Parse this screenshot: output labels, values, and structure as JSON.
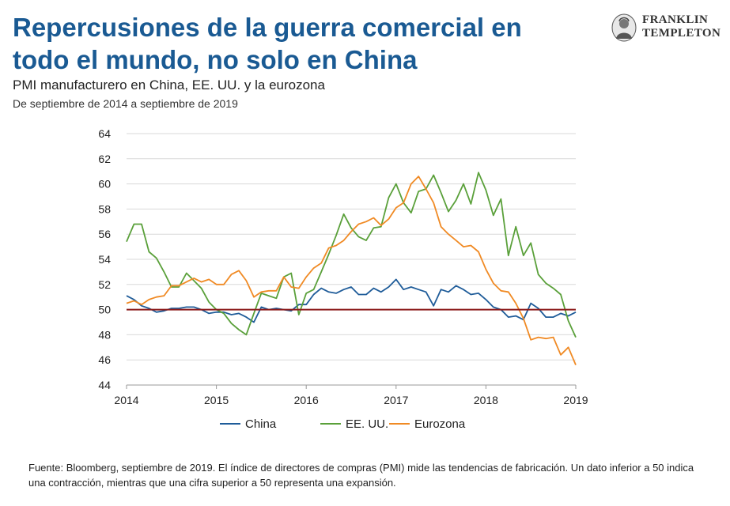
{
  "header": {
    "title": "Repercusiones de la guerra comercial en todo el mundo, no solo en China",
    "subtitle": "PMI manufacturero en China, EE. UU. y la eurozona",
    "date_range": "De septiembre de 2014 a septiembre de 2019"
  },
  "logo": {
    "line1": "FRANKLIN",
    "line2": "TEMPLETON"
  },
  "footnote": "Fuente: Bloomberg, septiembre de 2019. El índice de directores de compras (PMI) mide las tendencias de fabricación. Un dato inferior a 50 indica una contracción, mientras que una cifra superior a 50 representa una expansión.",
  "colors": {
    "china": "#1f5c99",
    "us": "#5aa03a",
    "euro": "#f08a24",
    "threshold": "#8b1a1a",
    "grid": "#d9d9d9"
  },
  "chart_data": {
    "type": "line",
    "ylim": [
      44,
      64
    ],
    "yticks": [
      44,
      46,
      48,
      50,
      52,
      54,
      56,
      58,
      60,
      62,
      64
    ],
    "xlim": [
      2014,
      2019
    ],
    "xticks": [
      2014,
      2015,
      2016,
      2017,
      2018,
      2019
    ],
    "reference_line": 50,
    "legend_position": "bottom",
    "grid": true,
    "series": [
      {
        "name": "China",
        "color": "#1f5c99",
        "x": [
          2014.0,
          2014.083,
          2014.167,
          2014.25,
          2014.333,
          2014.417,
          2014.5,
          2014.583,
          2014.667,
          2014.75,
          2014.833,
          2014.917,
          2015.0,
          2015.083,
          2015.167,
          2015.25,
          2015.333,
          2015.417,
          2015.5,
          2015.583,
          2015.667,
          2015.75,
          2015.833,
          2015.917,
          2016.0,
          2016.083,
          2016.167,
          2016.25,
          2016.333,
          2016.417,
          2016.5,
          2016.583,
          2016.667,
          2016.75,
          2016.833,
          2016.917,
          2017.0,
          2017.083,
          2017.167,
          2017.25,
          2017.333,
          2017.417,
          2017.5,
          2017.583,
          2017.667,
          2017.75,
          2017.833,
          2017.917,
          2018.0,
          2018.083,
          2018.167,
          2018.25,
          2018.333,
          2018.417,
          2018.5,
          2018.583,
          2018.667,
          2018.75,
          2018.833,
          2018.917,
          2019.0
        ],
        "values": [
          51.1,
          50.8,
          50.3,
          50.1,
          49.8,
          49.9,
          50.1,
          50.1,
          50.2,
          50.2,
          50.0,
          49.7,
          49.8,
          49.8,
          49.6,
          49.7,
          49.4,
          49.0,
          50.2,
          50.0,
          50.1,
          50.0,
          49.9,
          50.4,
          50.4,
          51.2,
          51.7,
          51.4,
          51.3,
          51.6,
          51.8,
          51.2,
          51.2,
          51.7,
          51.4,
          51.8,
          52.4,
          51.6,
          51.8,
          51.6,
          51.4,
          50.3,
          51.6,
          51.4,
          51.9,
          51.6,
          51.2,
          51.3,
          50.8,
          50.2,
          50.0,
          49.4,
          49.5,
          49.2,
          50.5,
          50.1,
          49.4,
          49.4,
          49.7,
          49.5,
          49.8
        ]
      },
      {
        "name": "EE. UU.",
        "color": "#5aa03a",
        "x": [
          2014.0,
          2014.083,
          2014.167,
          2014.25,
          2014.333,
          2014.417,
          2014.5,
          2014.583,
          2014.667,
          2014.75,
          2014.833,
          2014.917,
          2015.0,
          2015.083,
          2015.167,
          2015.25,
          2015.333,
          2015.417,
          2015.5,
          2015.583,
          2015.667,
          2015.75,
          2015.833,
          2015.917,
          2016.0,
          2016.083,
          2016.167,
          2016.25,
          2016.333,
          2016.417,
          2016.5,
          2016.583,
          2016.667,
          2016.75,
          2016.833,
          2016.917,
          2017.0,
          2017.083,
          2017.167,
          2017.25,
          2017.333,
          2017.417,
          2017.5,
          2017.583,
          2017.667,
          2017.75,
          2017.833,
          2017.917,
          2018.0,
          2018.083,
          2018.167,
          2018.25,
          2018.333,
          2018.417,
          2018.5,
          2018.583,
          2018.667,
          2018.75,
          2018.833,
          2018.917,
          2019.0
        ],
        "values": [
          55.4,
          56.8,
          56.8,
          54.6,
          54.1,
          53.0,
          51.8,
          51.8,
          52.9,
          52.3,
          51.7,
          50.6,
          50.0,
          49.7,
          48.9,
          48.4,
          48.0,
          49.7,
          51.3,
          51.1,
          50.9,
          52.6,
          52.9,
          49.6,
          51.3,
          51.6,
          53.0,
          54.4,
          55.9,
          57.6,
          56.5,
          55.8,
          55.5,
          56.5,
          56.6,
          58.9,
          60.0,
          58.5,
          57.7,
          59.4,
          59.6,
          60.7,
          59.3,
          57.8,
          58.7,
          60.0,
          58.4,
          60.9,
          59.5,
          57.5,
          58.8,
          54.3,
          56.6,
          54.3,
          55.3,
          52.8,
          52.1,
          51.7,
          51.2,
          49.1,
          47.8
        ]
      },
      {
        "name": "Eurozona",
        "color": "#f08a24",
        "x": [
          2014.0,
          2014.083,
          2014.167,
          2014.25,
          2014.333,
          2014.417,
          2014.5,
          2014.583,
          2014.667,
          2014.75,
          2014.833,
          2014.917,
          2015.0,
          2015.083,
          2015.167,
          2015.25,
          2015.333,
          2015.417,
          2015.5,
          2015.583,
          2015.667,
          2015.75,
          2015.833,
          2015.917,
          2016.0,
          2016.083,
          2016.167,
          2016.25,
          2016.333,
          2016.417,
          2016.5,
          2016.583,
          2016.667,
          2016.75,
          2016.833,
          2016.917,
          2017.0,
          2017.083,
          2017.167,
          2017.25,
          2017.333,
          2017.417,
          2017.5,
          2017.583,
          2017.667,
          2017.75,
          2017.833,
          2017.917,
          2018.0,
          2018.083,
          2018.167,
          2018.25,
          2018.333,
          2018.417,
          2018.5,
          2018.583,
          2018.667,
          2018.75,
          2018.833,
          2018.917,
          2019.0
        ],
        "values": [
          50.5,
          50.7,
          50.4,
          50.8,
          51.0,
          51.1,
          51.9,
          51.9,
          52.2,
          52.5,
          52.2,
          52.4,
          52.0,
          52.0,
          52.8,
          53.1,
          52.3,
          51.0,
          51.4,
          51.5,
          51.5,
          52.6,
          51.8,
          51.7,
          52.6,
          53.3,
          53.7,
          54.9,
          55.1,
          55.5,
          56.2,
          56.8,
          57.0,
          57.3,
          56.7,
          57.2,
          58.1,
          58.5,
          60.0,
          60.6,
          59.6,
          58.5,
          56.6,
          56.0,
          55.5,
          55.0,
          55.1,
          54.6,
          53.2,
          52.1,
          51.5,
          51.4,
          50.5,
          49.3,
          47.6,
          47.8,
          47.7,
          47.8,
          46.4,
          47.0,
          45.6
        ]
      }
    ]
  }
}
